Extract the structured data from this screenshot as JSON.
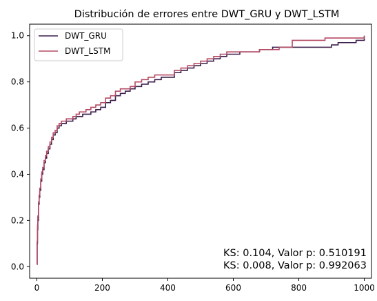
{
  "chart_data": {
    "type": "line",
    "title": "Distribución de errores entre DWT_GRU y DWT_LSTM",
    "xlabel": "",
    "ylabel": "",
    "xlim": [
      -22,
      1022
    ],
    "ylim": [
      -0.05,
      1.05
    ],
    "xticks": [
      0,
      200,
      400,
      600,
      800,
      1000
    ],
    "yticks": [
      0.0,
      0.2,
      0.4,
      0.6,
      0.8,
      1.0
    ],
    "xtick_labels": [
      "0",
      "200",
      "400",
      "600",
      "800",
      "1000"
    ],
    "ytick_labels": [
      "0.0",
      "0.2",
      "0.4",
      "0.6",
      "0.8",
      "1.0"
    ],
    "grid": false,
    "legend_position": "top-left",
    "series": [
      {
        "name": "DWT_GRU",
        "color": "#3b1d4a",
        "x": [
          0,
          1,
          2,
          3,
          5,
          7,
          9,
          12,
          15,
          18,
          22,
          26,
          30,
          35,
          40,
          45,
          50,
          56,
          62,
          68,
          75,
          82,
          90,
          100,
          110,
          120,
          130,
          140,
          150,
          165,
          180,
          195,
          210,
          225,
          240,
          255,
          270,
          285,
          300,
          320,
          340,
          360,
          380,
          400,
          420,
          440,
          460,
          480,
          500,
          520,
          540,
          560,
          580,
          600,
          620,
          640,
          660,
          680,
          700,
          720,
          740,
          760,
          780,
          800,
          820,
          840,
          860,
          880,
          900,
          920,
          940,
          960,
          975,
          990,
          1000
        ],
        "y": [
          0.01,
          0.1,
          0.16,
          0.2,
          0.27,
          0.3,
          0.33,
          0.37,
          0.4,
          0.42,
          0.45,
          0.47,
          0.49,
          0.51,
          0.53,
          0.55,
          0.57,
          0.58,
          0.6,
          0.61,
          0.62,
          0.62,
          0.63,
          0.63,
          0.64,
          0.65,
          0.65,
          0.66,
          0.66,
          0.67,
          0.68,
          0.69,
          0.71,
          0.72,
          0.74,
          0.75,
          0.76,
          0.77,
          0.78,
          0.79,
          0.8,
          0.81,
          0.82,
          0.82,
          0.84,
          0.85,
          0.86,
          0.87,
          0.88,
          0.89,
          0.9,
          0.91,
          0.92,
          0.92,
          0.93,
          0.93,
          0.93,
          0.94,
          0.94,
          0.95,
          0.95,
          0.95,
          0.95,
          0.95,
          0.95,
          0.95,
          0.95,
          0.95,
          0.96,
          0.97,
          0.97,
          0.97,
          0.98,
          0.98,
          1.0
        ]
      },
      {
        "name": "DWT_LSTM",
        "color": "#b54a63",
        "x": [
          0,
          1,
          2,
          3,
          5,
          7,
          9,
          12,
          15,
          18,
          22,
          26,
          30,
          35,
          40,
          45,
          50,
          56,
          62,
          68,
          75,
          82,
          90,
          100,
          110,
          120,
          130,
          140,
          150,
          165,
          180,
          195,
          210,
          225,
          240,
          255,
          270,
          285,
          300,
          320,
          340,
          360,
          380,
          400,
          420,
          440,
          460,
          480,
          500,
          520,
          540,
          560,
          580,
          600,
          620,
          640,
          660,
          680,
          700,
          720,
          740,
          760,
          780,
          800,
          820,
          840,
          860,
          880,
          900,
          920,
          940,
          960,
          975,
          990,
          1000
        ],
        "y": [
          0.01,
          0.11,
          0.18,
          0.22,
          0.28,
          0.31,
          0.34,
          0.38,
          0.41,
          0.43,
          0.46,
          0.48,
          0.5,
          0.52,
          0.54,
          0.56,
          0.58,
          0.59,
          0.61,
          0.62,
          0.63,
          0.63,
          0.64,
          0.64,
          0.65,
          0.66,
          0.67,
          0.67,
          0.68,
          0.69,
          0.7,
          0.71,
          0.73,
          0.74,
          0.76,
          0.77,
          0.77,
          0.78,
          0.8,
          0.81,
          0.82,
          0.83,
          0.83,
          0.83,
          0.85,
          0.86,
          0.87,
          0.88,
          0.89,
          0.9,
          0.91,
          0.92,
          0.93,
          0.93,
          0.93,
          0.93,
          0.93,
          0.94,
          0.94,
          0.94,
          0.95,
          0.95,
          0.98,
          0.98,
          0.98,
          0.98,
          0.98,
          0.99,
          0.99,
          0.99,
          0.99,
          0.99,
          0.99,
          0.99,
          1.0
        ]
      }
    ],
    "annotations": [
      "KS: 0.104, Valor p: 0.510191",
      "KS: 0.008, Valor p: 0.992063"
    ]
  }
}
